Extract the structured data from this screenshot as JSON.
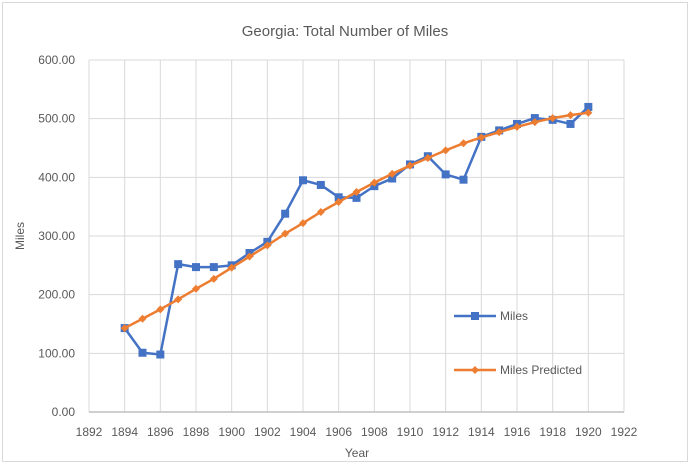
{
  "chart_data": {
    "type": "line",
    "title": "Georgia: Total Number of Miles",
    "xlabel": "Year",
    "ylabel": "Miles",
    "xlim": [
      1892,
      1922
    ],
    "ylim": [
      0,
      600
    ],
    "x_ticks": [
      1892,
      1894,
      1896,
      1898,
      1900,
      1902,
      1904,
      1906,
      1908,
      1910,
      1912,
      1914,
      1916,
      1918,
      1920,
      1922
    ],
    "y_ticks": [
      "0.00",
      "100.00",
      "200.00",
      "300.00",
      "400.00",
      "500.00",
      "600.00"
    ],
    "y_tick_values": [
      0,
      100,
      200,
      300,
      400,
      500,
      600
    ],
    "grid": true,
    "legend_position": "right-inside",
    "x": [
      1894,
      1895,
      1896,
      1897,
      1898,
      1899,
      1900,
      1901,
      1902,
      1903,
      1904,
      1905,
      1906,
      1907,
      1908,
      1909,
      1910,
      1911,
      1912,
      1913,
      1914,
      1915,
      1916,
      1917,
      1918,
      1919,
      1920
    ],
    "series": [
      {
        "name": "Miles",
        "color": "#4472C4",
        "marker": "square",
        "values": [
          143,
          101,
          98,
          252,
          247,
          247,
          250,
          271,
          290,
          338,
          395,
          387,
          366,
          365,
          385,
          398,
          422,
          436,
          405,
          396,
          469,
          480,
          491,
          501,
          498,
          491,
          520
        ]
      },
      {
        "name": "Miles Predicted",
        "color": "#ED7D31",
        "marker": "diamond",
        "values": [
          143,
          159,
          175,
          192,
          210,
          227,
          246,
          265,
          284,
          304,
          322,
          341,
          358,
          375,
          391,
          406,
          420,
          433,
          446,
          458,
          468,
          477,
          486,
          494,
          501,
          506,
          510
        ]
      }
    ]
  }
}
